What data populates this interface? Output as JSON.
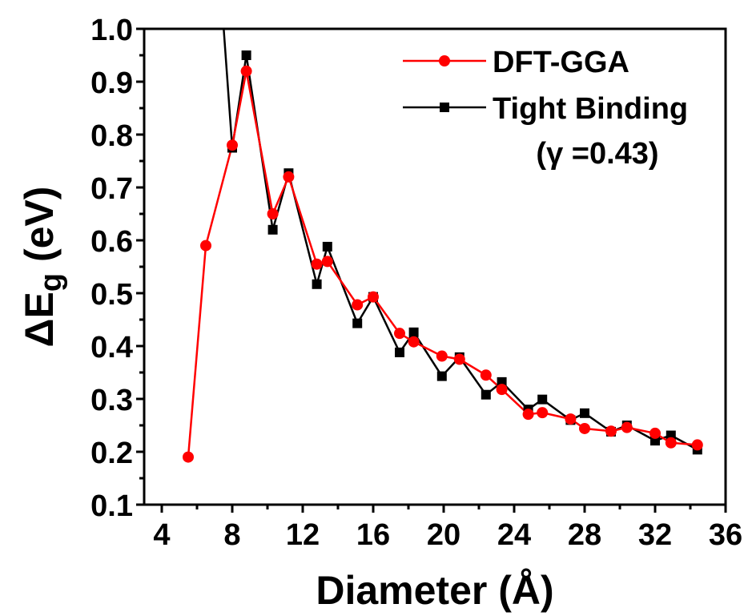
{
  "chart_data": {
    "type": "line",
    "xlabel": "Diameter (Å)",
    "ylabel": {
      "prefix": "ΔE",
      "subscript": "g",
      "suffix": " (eV)"
    },
    "xlim": [
      3,
      36
    ],
    "ylim": [
      0.1,
      1.0
    ],
    "xticks": [
      "4",
      "8",
      "12",
      "16",
      "20",
      "24",
      "28",
      "32",
      "36"
    ],
    "yticks": [
      "0.1",
      "0.2",
      "0.3",
      "0.4",
      "0.5",
      "0.6",
      "0.7",
      "0.8",
      "0.9",
      "1.0"
    ],
    "legend_position": "top-right",
    "legend_note": "(γ =0.43)",
    "series": [
      {
        "name": "DFT-GGA",
        "color": "#ff0000",
        "marker": "circle",
        "x": [
          5.5,
          6.5,
          8.0,
          8.8,
          10.3,
          11.2,
          12.8,
          13.4,
          15.1,
          16.0,
          17.5,
          18.3,
          19.9,
          20.9,
          22.4,
          23.3,
          24.8,
          25.6,
          27.2,
          28.0,
          29.5,
          30.4,
          32.0,
          32.9,
          34.4
        ],
        "y": [
          0.19,
          0.59,
          0.78,
          0.92,
          0.65,
          0.72,
          0.555,
          0.56,
          0.478,
          0.493,
          0.424,
          0.408,
          0.381,
          0.375,
          0.345,
          0.318,
          0.271,
          0.274,
          0.262,
          0.244,
          0.239,
          0.246,
          0.235,
          0.217,
          0.213
        ]
      },
      {
        "name": "Tight Binding",
        "color": "#000000",
        "marker": "square",
        "x": [
          7.3,
          8.0,
          8.8,
          10.3,
          11.2,
          12.8,
          13.4,
          15.1,
          16.0,
          17.5,
          18.3,
          19.9,
          20.9,
          22.4,
          23.3,
          24.8,
          25.6,
          27.2,
          28.0,
          29.5,
          30.4,
          32.0,
          32.9,
          34.4
        ],
        "y": [
          1.1,
          0.775,
          0.95,
          0.62,
          0.727,
          0.517,
          0.588,
          0.443,
          0.493,
          0.388,
          0.426,
          0.343,
          0.379,
          0.308,
          0.332,
          0.28,
          0.299,
          0.26,
          0.273,
          0.238,
          0.25,
          0.221,
          0.231,
          0.204
        ],
        "marker_start_index": 1
      }
    ]
  }
}
